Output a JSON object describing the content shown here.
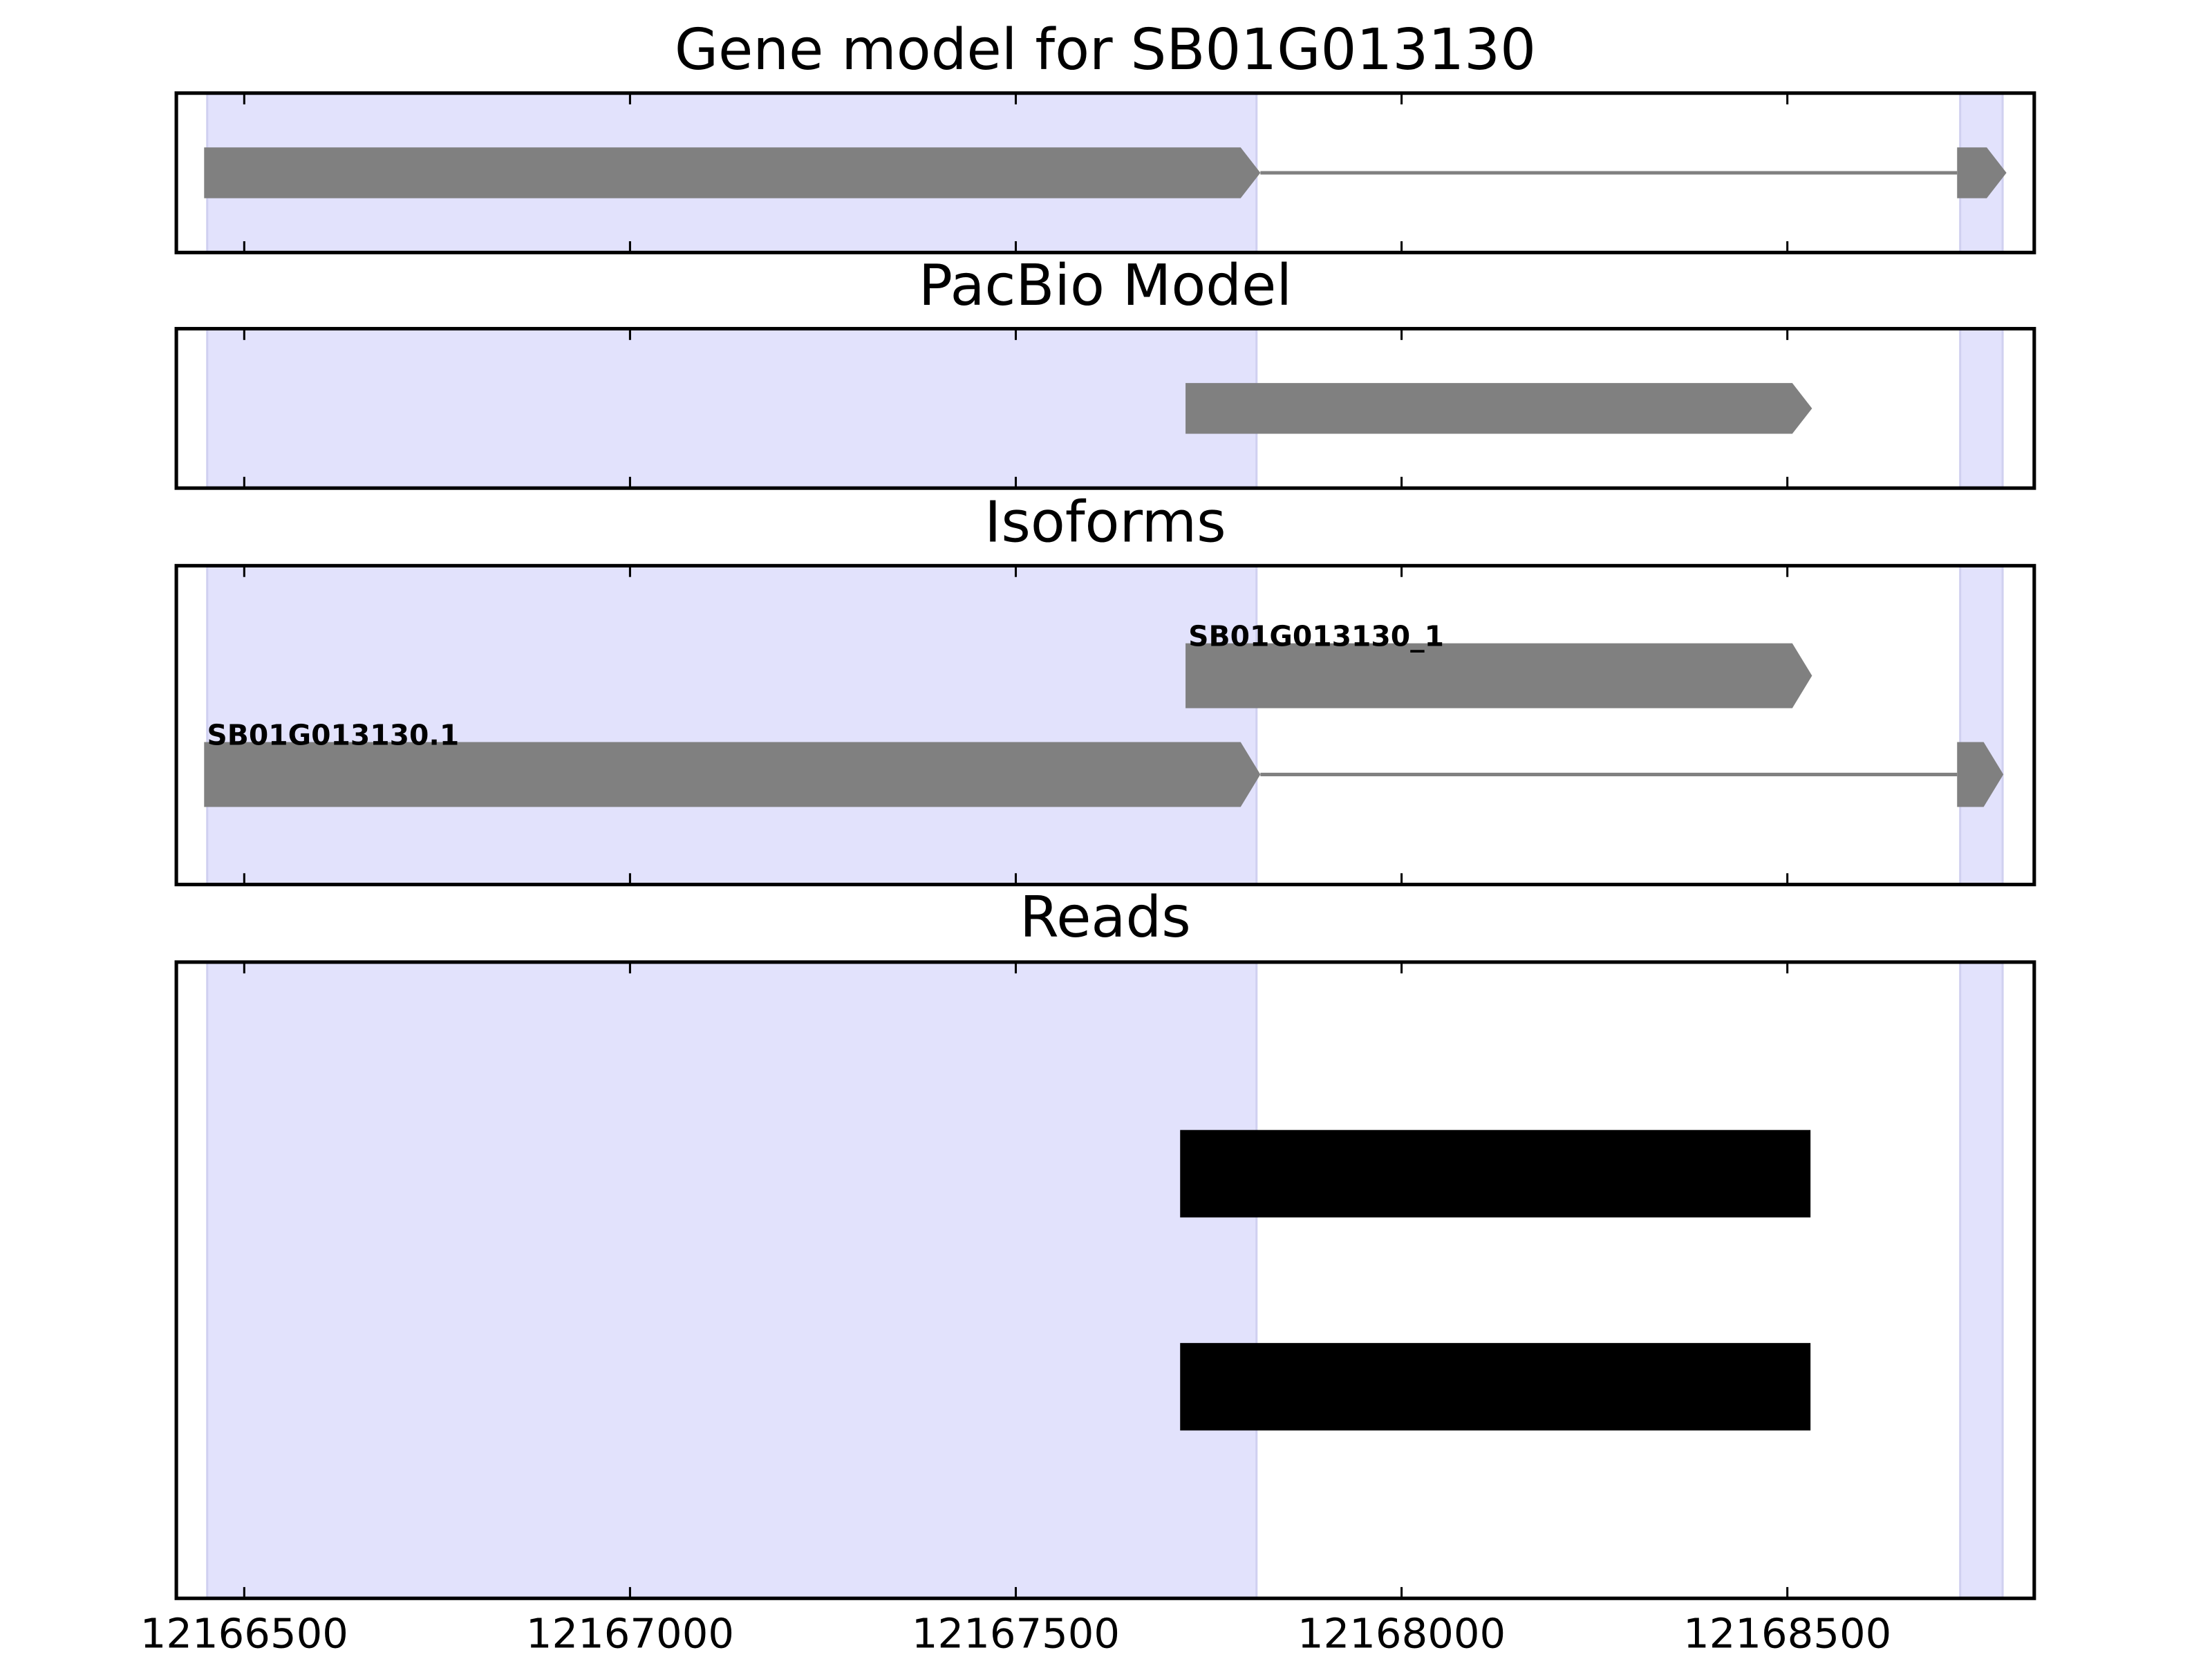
{
  "chart_data": [
    {
      "type": "track",
      "title": "Gene model for SB01G013130",
      "xlim": [
        12166412,
        12168820
      ],
      "xticks": [
        12166500,
        12167000,
        12167500,
        12168000,
        12168500
      ],
      "shaded": [
        {
          "start": 12166452,
          "end": 12167812
        },
        {
          "start": 12168724,
          "end": 12168779
        }
      ],
      "shade_color": "#e2e2fc",
      "features": [
        {
          "color": "#808080",
          "arrow": true,
          "exons": [
            {
              "start": 12166448,
              "end": 12167817
            },
            {
              "start": 12168720,
              "end": 12168784
            }
          ]
        }
      ]
    },
    {
      "type": "track",
      "title": "PacBio Model",
      "xlim": [
        12166412,
        12168820
      ],
      "xticks": [
        12166500,
        12167000,
        12167500,
        12168000,
        12168500
      ],
      "shaded": [
        {
          "start": 12166452,
          "end": 12167812
        },
        {
          "start": 12168724,
          "end": 12168779
        }
      ],
      "shade_color": "#e2e2fc",
      "features": [
        {
          "color": "#808080",
          "arrow": true,
          "exons": [
            {
              "start": 12167720,
              "end": 12168532
            }
          ]
        }
      ]
    },
    {
      "type": "track",
      "title": "Isoforms",
      "xlim": [
        12166412,
        12168820
      ],
      "xticks": [
        12166500,
        12167000,
        12167500,
        12168000,
        12168500
      ],
      "shaded": [
        {
          "start": 12166452,
          "end": 12167812
        },
        {
          "start": 12168724,
          "end": 12168779
        }
      ],
      "shade_color": "#e2e2fc",
      "features": [
        {
          "label": "SB01G013130_1",
          "color": "#808080",
          "arrow": true,
          "exons": [
            {
              "start": 12167720,
              "end": 12168532
            }
          ]
        },
        {
          "label": "SB01G013130.1",
          "color": "#808080",
          "arrow": true,
          "exons": [
            {
              "start": 12166448,
              "end": 12167817
            },
            {
              "start": 12168720,
              "end": 12168780
            }
          ]
        }
      ]
    },
    {
      "type": "track",
      "title": "Reads",
      "xlim": [
        12166412,
        12168820
      ],
      "xticks": [
        12166500,
        12167000,
        12167500,
        12168000,
        12168500
      ],
      "tick_labels": true,
      "shaded": [
        {
          "start": 12166452,
          "end": 12167812
        },
        {
          "start": 12168724,
          "end": 12168779
        }
      ],
      "shade_color": "#e2e2fc",
      "features": [
        {
          "color": "#000000",
          "arrow": false,
          "exons": [
            {
              "start": 12167713,
              "end": 12168530
            }
          ]
        },
        {
          "color": "#000000",
          "arrow": false,
          "exons": [
            {
              "start": 12167713,
              "end": 12168530
            }
          ]
        }
      ]
    }
  ]
}
